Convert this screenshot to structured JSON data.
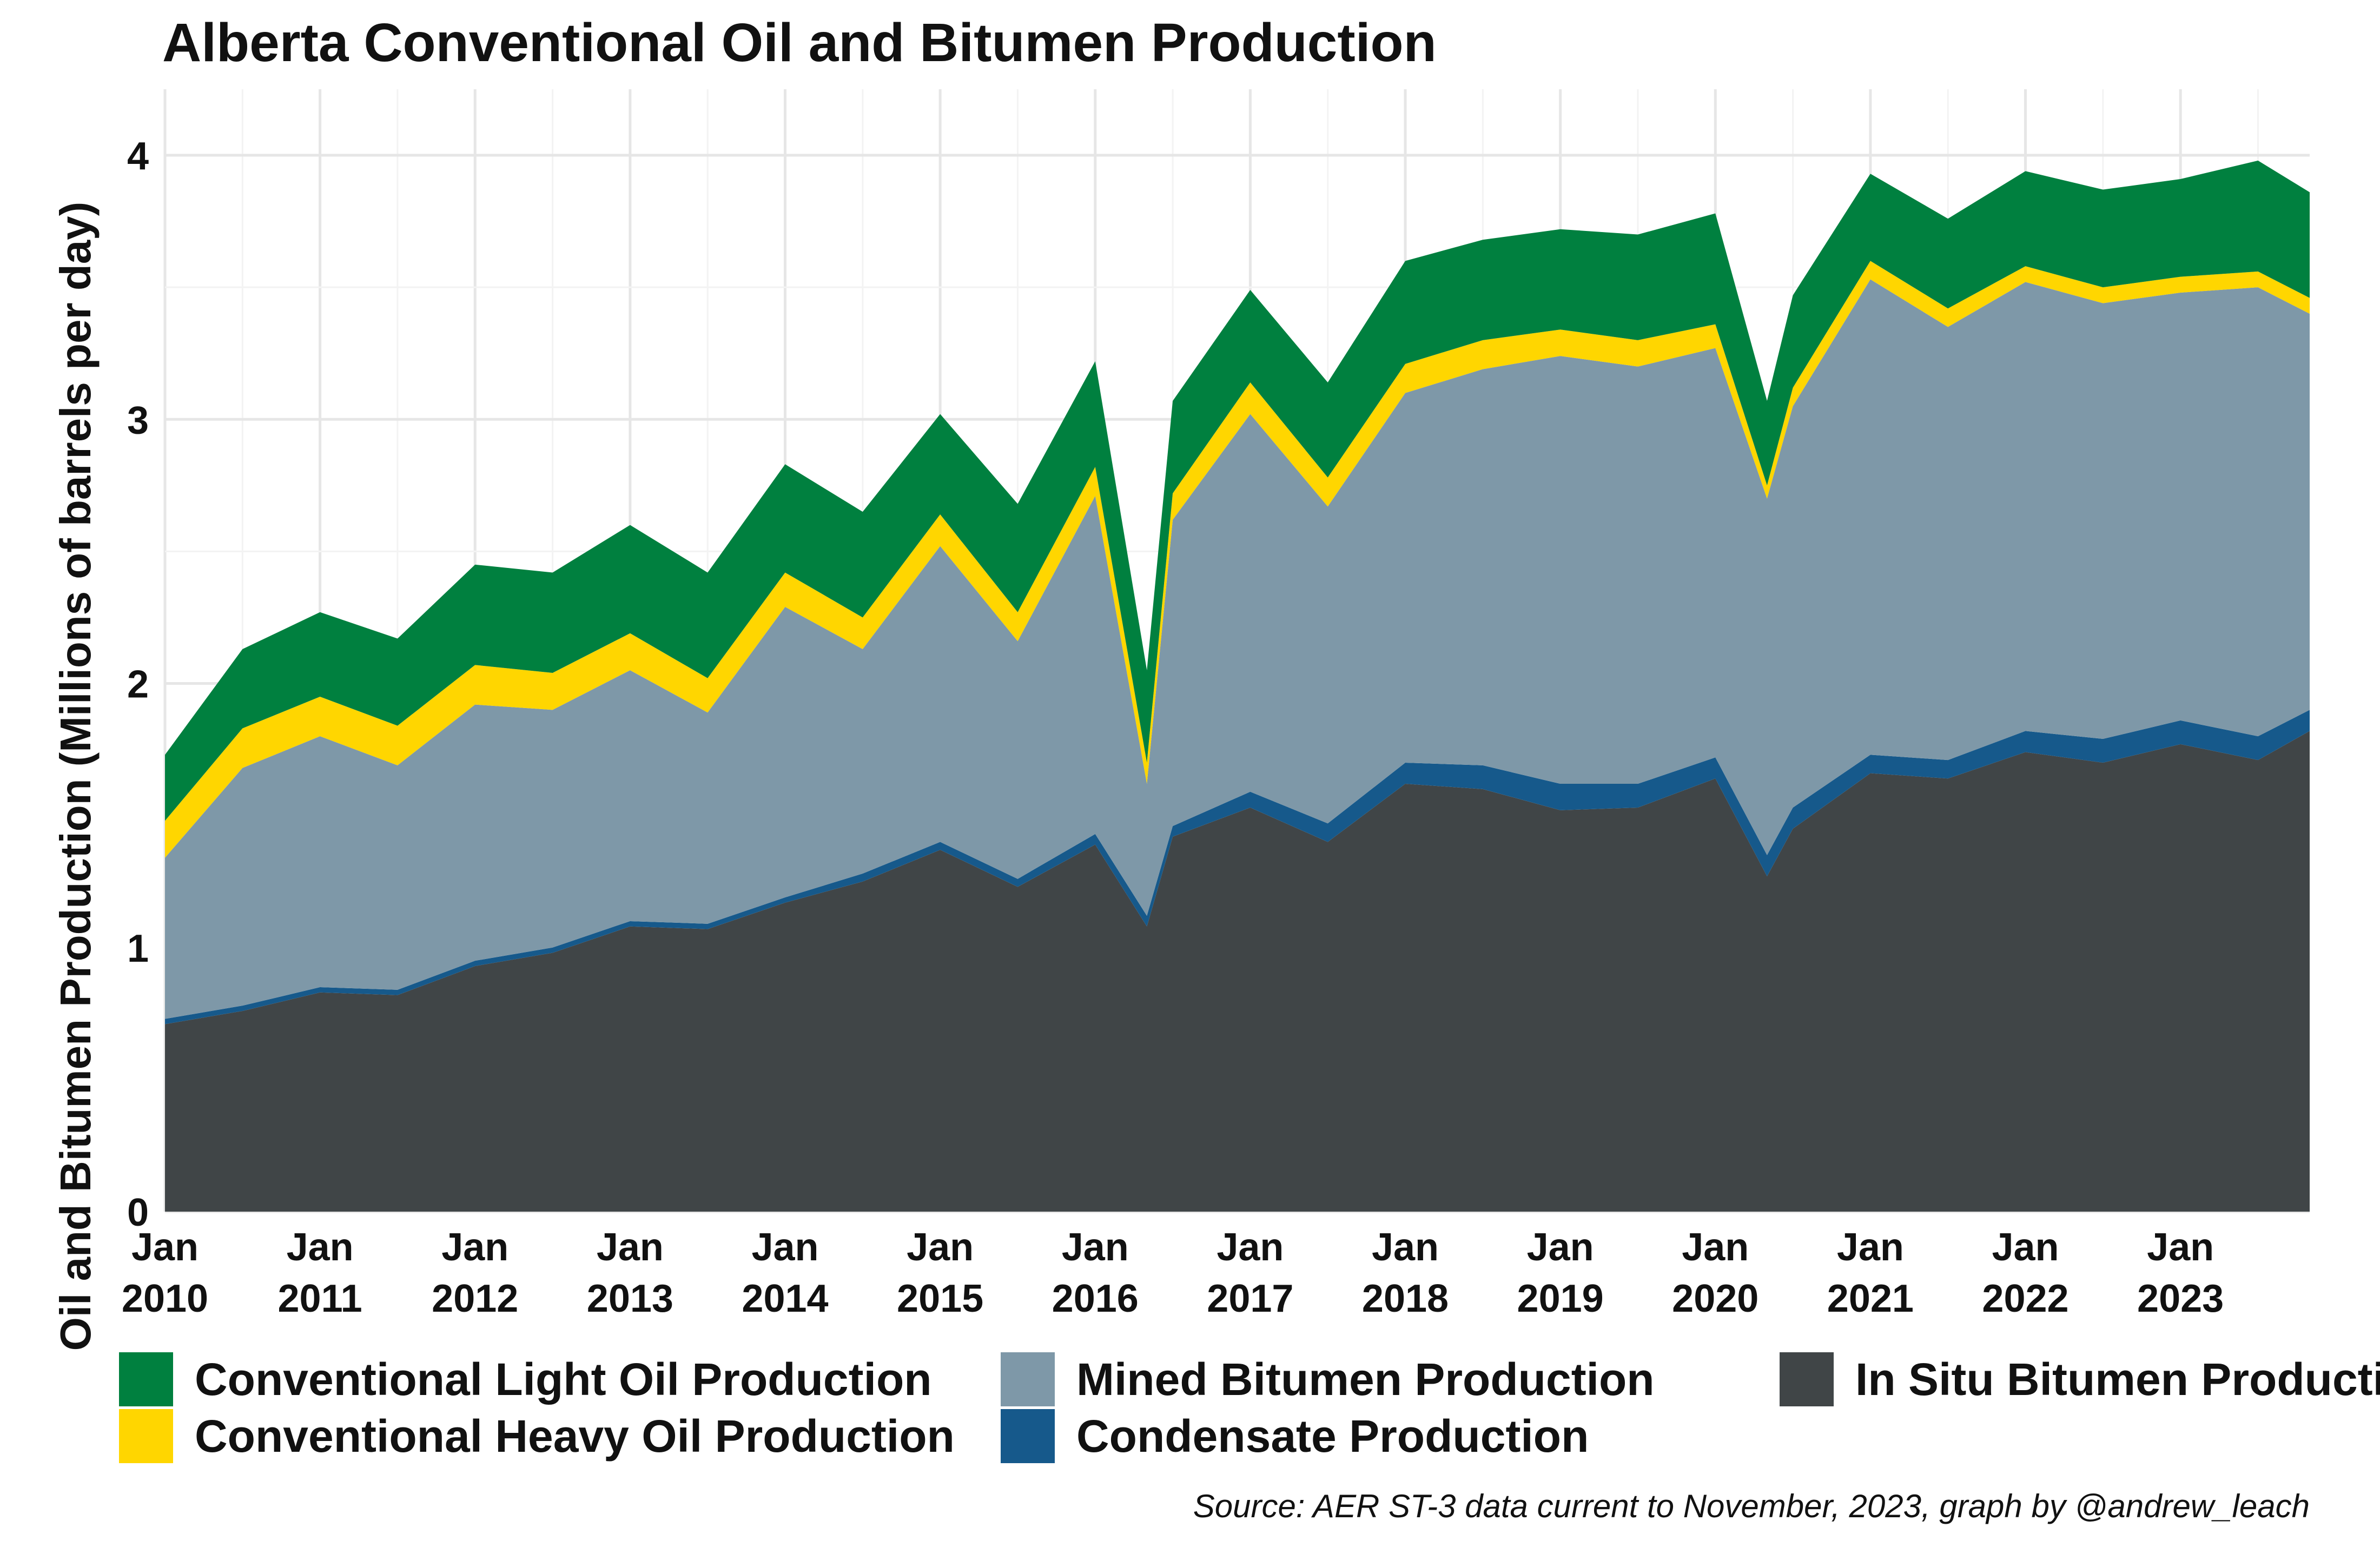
{
  "chart_data": {
    "type": "area",
    "stacked": true,
    "title": "Alberta Conventional Oil and Bitumen Production",
    "ylabel": "Oil and Bitumen Production (Millions of barrels per day)",
    "xlabel": "",
    "ylim": [
      0,
      4.25
    ],
    "yticks": [
      0,
      1,
      2,
      3,
      4
    ],
    "xlim": [
      "2010-01",
      "2023-11"
    ],
    "xticks": [
      {
        "line1": "Jan",
        "line2": "2010",
        "year": 2010
      },
      {
        "line1": "Jan",
        "line2": "2011",
        "year": 2011
      },
      {
        "line1": "Jan",
        "line2": "2012",
        "year": 2012
      },
      {
        "line1": "Jan",
        "line2": "2013",
        "year": 2013
      },
      {
        "line1": "Jan",
        "line2": "2014",
        "year": 2014
      },
      {
        "line1": "Jan",
        "line2": "2015",
        "year": 2015
      },
      {
        "line1": "Jan",
        "line2": "2016",
        "year": 2016
      },
      {
        "line1": "Jan",
        "line2": "2017",
        "year": 2017
      },
      {
        "line1": "Jan",
        "line2": "2018",
        "year": 2018
      },
      {
        "line1": "Jan",
        "line2": "2019",
        "year": 2019
      },
      {
        "line1": "Jan",
        "line2": "2020",
        "year": 2020
      },
      {
        "line1": "Jan",
        "line2": "2021",
        "year": 2021
      },
      {
        "line1": "Jan",
        "line2": "2022",
        "year": 2022
      },
      {
        "line1": "Jan",
        "line2": "2023",
        "year": 2023
      }
    ],
    "grid": true,
    "legend_position": "bottom",
    "source": "Source: AER ST-3 data current to November, 2023, graph by @andrew_leach",
    "x": [
      "2010-01",
      "2010-07",
      "2011-01",
      "2011-07",
      "2012-01",
      "2012-07",
      "2013-01",
      "2013-07",
      "2014-01",
      "2014-07",
      "2015-01",
      "2015-07",
      "2016-01",
      "2016-05",
      "2016-07",
      "2017-01",
      "2017-07",
      "2018-01",
      "2018-07",
      "2019-01",
      "2019-07",
      "2020-01",
      "2020-05",
      "2020-07",
      "2021-01",
      "2021-07",
      "2022-01",
      "2022-07",
      "2023-01",
      "2023-07",
      "2023-11"
    ],
    "series": [
      {
        "name": "In Situ Bitumen Production",
        "color": "#404547",
        "values": [
          0.71,
          0.76,
          0.83,
          0.82,
          0.93,
          0.98,
          1.08,
          1.07,
          1.17,
          1.25,
          1.37,
          1.23,
          1.39,
          1.08,
          1.42,
          1.53,
          1.4,
          1.62,
          1.6,
          1.52,
          1.53,
          1.64,
          1.27,
          1.45,
          1.66,
          1.64,
          1.74,
          1.7,
          1.77,
          1.71,
          1.82
        ]
      },
      {
        "name": "Condensate Production",
        "color": "#16598b",
        "values": [
          0.02,
          0.02,
          0.02,
          0.02,
          0.02,
          0.02,
          0.02,
          0.02,
          0.02,
          0.03,
          0.03,
          0.03,
          0.04,
          0.04,
          0.04,
          0.06,
          0.07,
          0.08,
          0.09,
          0.1,
          0.09,
          0.08,
          0.08,
          0.08,
          0.07,
          0.07,
          0.08,
          0.09,
          0.09,
          0.09,
          0.08
        ]
      },
      {
        "name": "Mined Bitumen Production",
        "color": "#7e98a8",
        "values": [
          0.61,
          0.9,
          0.95,
          0.85,
          0.97,
          0.9,
          0.95,
          0.8,
          1.1,
          0.85,
          1.12,
          0.9,
          1.28,
          0.5,
          1.16,
          1.43,
          1.2,
          1.4,
          1.5,
          1.62,
          1.58,
          1.55,
          1.35,
          1.52,
          1.8,
          1.64,
          1.7,
          1.65,
          1.62,
          1.7,
          1.5
        ]
      },
      {
        "name": "Conventional Heavy Oil Production",
        "color": "#ffd600",
        "values": [
          0.14,
          0.15,
          0.15,
          0.15,
          0.15,
          0.14,
          0.14,
          0.13,
          0.13,
          0.12,
          0.12,
          0.11,
          0.11,
          0.08,
          0.1,
          0.12,
          0.11,
          0.11,
          0.11,
          0.1,
          0.1,
          0.09,
          0.05,
          0.07,
          0.07,
          0.07,
          0.06,
          0.06,
          0.06,
          0.06,
          0.06
        ]
      },
      {
        "name": "Conventional Light Oil Production",
        "color": "#00803f",
        "values": [
          0.25,
          0.3,
          0.32,
          0.33,
          0.38,
          0.38,
          0.41,
          0.4,
          0.41,
          0.4,
          0.38,
          0.41,
          0.4,
          0.35,
          0.35,
          0.35,
          0.36,
          0.39,
          0.38,
          0.38,
          0.4,
          0.42,
          0.32,
          0.35,
          0.33,
          0.34,
          0.36,
          0.37,
          0.37,
          0.42,
          0.4
        ]
      }
    ],
    "legend": [
      {
        "label": "Conventional Light Oil Production",
        "color": "#00803f"
      },
      {
        "label": "Conventional Heavy Oil Production",
        "color": "#ffd600"
      },
      {
        "label": "Mined Bitumen Production",
        "color": "#7e98a8"
      },
      {
        "label": "Condensate Production",
        "color": "#16598b"
      },
      {
        "label": "In Situ Bitumen Production",
        "color": "#404547"
      }
    ]
  }
}
